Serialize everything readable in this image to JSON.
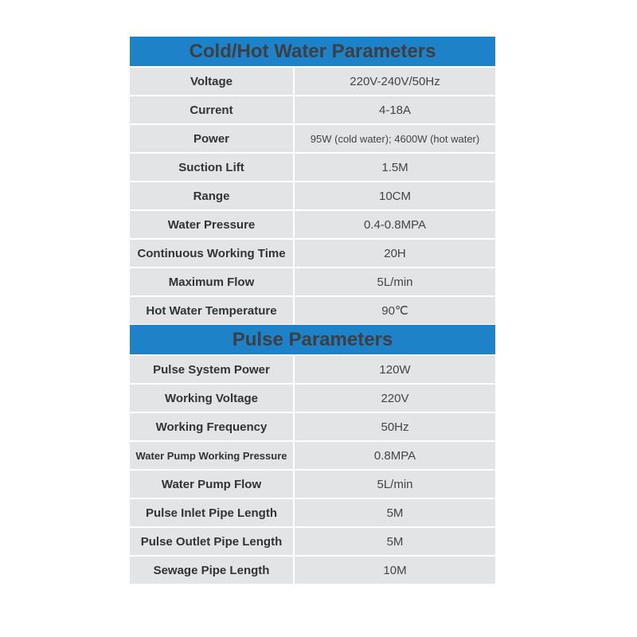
{
  "sections": [
    {
      "title": "Cold/Hot Water Parameters",
      "rows": [
        {
          "label": "Voltage",
          "value": "220V-240V/50Hz"
        },
        {
          "label": "Current",
          "value": "4-18A"
        },
        {
          "label": "Power",
          "value": "95W (cold water); 4600W (hot water)"
        },
        {
          "label": "Suction Lift",
          "value": "1.5M"
        },
        {
          "label": "Range",
          "value": "10CM"
        },
        {
          "label": "Water Pressure",
          "value": "0.4-0.8MPA"
        },
        {
          "label": "Continuous Working Time",
          "value": "20H"
        },
        {
          "label": "Maximum Flow",
          "value": "5L/min"
        },
        {
          "label": "Hot Water Temperature",
          "value": "90℃"
        }
      ]
    },
    {
      "title": "Pulse Parameters",
      "rows": [
        {
          "label": "Pulse System Power",
          "value": "120W"
        },
        {
          "label": "Working Voltage",
          "value": "220V"
        },
        {
          "label": "Working Frequency",
          "value": "50Hz"
        },
        {
          "label": "Water Pump Working Pressure",
          "value": "0.8MPA"
        },
        {
          "label": "Water Pump Flow",
          "value": "5L/min"
        },
        {
          "label": "Pulse Inlet Pipe Length",
          "value": "5M"
        },
        {
          "label": "Pulse Outlet Pipe Length",
          "value": "5M"
        },
        {
          "label": "Sewage Pipe Length",
          "value": "10M"
        }
      ]
    }
  ],
  "colors": {
    "header": "#1e82c8",
    "row": "#e3e4e6"
  }
}
